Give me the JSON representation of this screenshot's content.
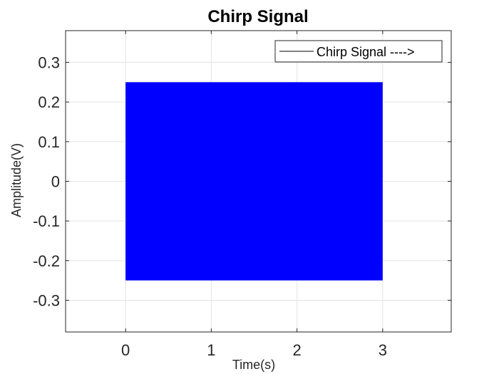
{
  "chart_data": {
    "type": "area",
    "title": "Chirp Signal",
    "xlabel": "Time(s)",
    "ylabel": "Amplitude(V)",
    "xlim": [
      -0.7,
      3.8
    ],
    "ylim": [
      -0.38,
      0.38
    ],
    "xticks": [
      0,
      1,
      2,
      3
    ],
    "xtick_labels": [
      "0",
      "1",
      "2",
      "3"
    ],
    "yticks": [
      0.3,
      0.2,
      0.1,
      0,
      -0.1,
      -0.2,
      -0.3
    ],
    "ytick_labels": [
      "0.3",
      "0.2",
      "0.1",
      "0",
      "-0.1",
      "-0.2",
      "-0.3"
    ],
    "grid": true,
    "legend_position": "top-right",
    "series": [
      {
        "name": "Chirp Signal ---->",
        "color": "#0000ff",
        "x_start": 0,
        "x_end": 3,
        "amplitude_max": 0.25,
        "amplitude_min": -0.25
      }
    ],
    "legend_line_color": "#000000"
  }
}
